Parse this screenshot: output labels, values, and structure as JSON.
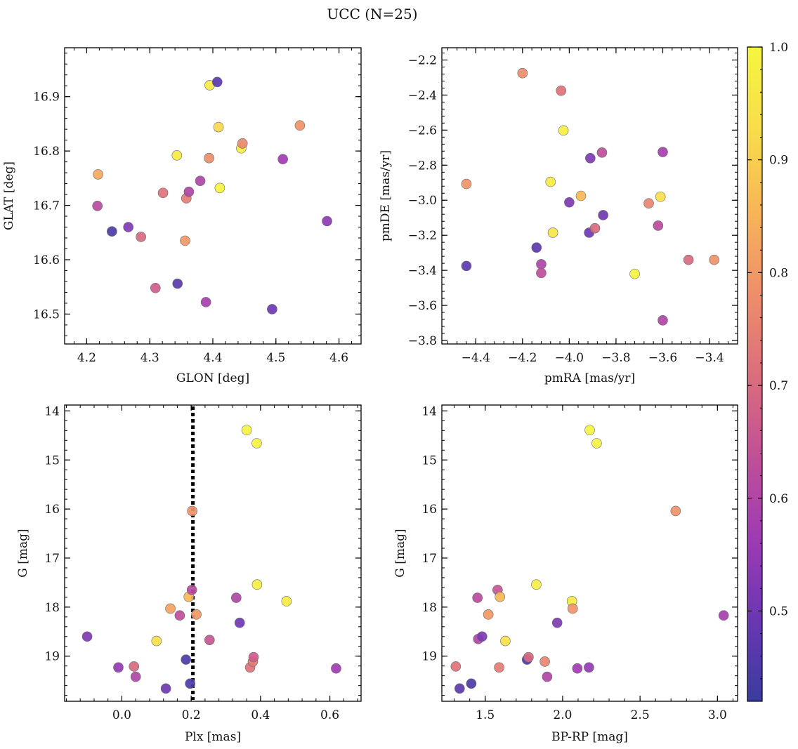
{
  "figure": {
    "title": "UCC (N=25)"
  },
  "colorbar": {
    "min": 0.42,
    "max": 1.0,
    "ticks": [
      0.5,
      0.6,
      0.7,
      0.8,
      0.9,
      1.0
    ],
    "tick_labels": [
      "0.5",
      "0.6",
      "0.7",
      "0.8",
      "0.9",
      "1.0"
    ],
    "colormap": "plasma",
    "stops": [
      "#3a3c9f",
      "#6a37b3",
      "#9f3bb4",
      "#c15097",
      "#db6e7c",
      "#ee8f6a",
      "#f8b558",
      "#f8dd4c",
      "#f5f63e"
    ]
  },
  "chart_data": [
    {
      "type": "scatter",
      "xlabel": "GLON [deg]",
      "ylabel": "GLAT [deg]",
      "xlim": [
        4.165,
        4.635
      ],
      "ylim": [
        16.445,
        16.99
      ],
      "xticks": [
        4.2,
        4.3,
        4.4,
        4.5,
        4.6
      ],
      "xtick_labels": [
        "4.2",
        "4.3",
        "4.4",
        "4.5",
        "4.6"
      ],
      "yticks": [
        16.5,
        16.6,
        16.7,
        16.8,
        16.9
      ],
      "ytick_labels": [
        "16.5",
        "16.6",
        "16.7",
        "16.8",
        "16.9"
      ],
      "x": [
        4.218,
        4.217,
        4.24,
        4.266,
        4.286,
        4.309,
        4.321,
        4.343,
        4.344,
        4.358,
        4.362,
        4.356,
        4.38,
        4.389,
        4.394,
        4.395,
        4.407,
        4.409,
        4.411,
        4.445,
        4.447,
        4.494,
        4.511,
        4.538,
        4.581
      ],
      "y": [
        16.757,
        16.699,
        16.652,
        16.66,
        16.642,
        16.548,
        16.723,
        16.792,
        16.556,
        16.713,
        16.725,
        16.635,
        16.745,
        16.522,
        16.787,
        16.921,
        16.927,
        16.844,
        16.732,
        16.805,
        16.814,
        16.509,
        16.785,
        16.847,
        16.671
      ],
      "c": [
        0.83,
        0.62,
        0.45,
        0.52,
        0.7,
        0.67,
        0.72,
        0.97,
        0.47,
        0.74,
        0.6,
        0.8,
        0.6,
        0.58,
        0.78,
        0.97,
        0.47,
        0.92,
        0.99,
        0.97,
        0.77,
        0.5,
        0.57,
        0.79,
        0.54
      ]
    },
    {
      "type": "scatter",
      "xlabel": "pmRA [mas/yr]",
      "ylabel": "pmDE [mas/yr]",
      "xlim": [
        -4.545,
        -3.28
      ],
      "ylim": [
        -3.82,
        -2.13
      ],
      "xticks": [
        -4.4,
        -4.2,
        -4.0,
        -3.8,
        -3.6,
        -3.4
      ],
      "xtick_labels": [
        "−4.4",
        "−4.2",
        "−4.0",
        "−3.8",
        "−3.6",
        "−3.4"
      ],
      "yticks": [
        -3.8,
        -3.6,
        -3.4,
        -3.2,
        -3.0,
        -2.8,
        -2.6,
        -2.4,
        -2.2
      ],
      "ytick_labels": [
        "−3.8",
        "−3.6",
        "−3.4",
        "−3.2",
        "−3.0",
        "−2.8",
        "−2.6",
        "−2.4",
        "−2.2"
      ],
      "x": [
        -4.44,
        -4.44,
        -4.2,
        -4.14,
        -4.12,
        -4.12,
        -4.08,
        -4.07,
        -4.035,
        -4.025,
        -4.0,
        -3.95,
        -3.915,
        -3.91,
        -3.89,
        -3.86,
        -3.855,
        -3.72,
        -3.66,
        -3.62,
        -3.61,
        -3.6,
        -3.6,
        -3.49,
        -3.38
      ],
      "y": [
        -3.375,
        -2.907,
        -2.275,
        -3.27,
        -3.365,
        -3.415,
        -2.895,
        -3.185,
        -2.375,
        -2.602,
        -3.012,
        -2.975,
        -3.185,
        -2.76,
        -3.16,
        -2.728,
        -3.085,
        -3.42,
        -3.018,
        -3.145,
        -2.98,
        -2.725,
        -3.685,
        -3.34,
        -3.34
      ],
      "c": [
        0.47,
        0.79,
        0.78,
        0.47,
        0.6,
        0.63,
        0.97,
        0.95,
        0.72,
        0.98,
        0.52,
        0.86,
        0.5,
        0.52,
        0.7,
        0.63,
        0.5,
        0.99,
        0.76,
        0.62,
        0.93,
        0.58,
        0.6,
        0.7,
        0.79
      ]
    },
    {
      "type": "scatter",
      "xlabel": "Plx [mas]",
      "ylabel": "G [mag]",
      "xlim": [
        -0.165,
        0.69
      ],
      "ylim": [
        19.92,
        13.88
      ],
      "y_inverted": true,
      "vline": 0.205,
      "xticks": [
        0.0,
        0.2,
        0.4,
        0.6
      ],
      "xtick_labels": [
        "0.0",
        "0.2",
        "0.4",
        "0.6"
      ],
      "yticks": [
        14,
        15,
        16,
        17,
        18,
        19
      ],
      "ytick_labels": [
        "14",
        "15",
        "16",
        "17",
        "18",
        "19"
      ],
      "x": [
        -0.1,
        -0.01,
        0.035,
        0.04,
        0.1,
        0.127,
        0.14,
        0.167,
        0.185,
        0.193,
        0.197,
        0.202,
        0.203,
        0.215,
        0.253,
        0.33,
        0.34,
        0.36,
        0.37,
        0.378,
        0.38,
        0.389,
        0.39,
        0.475,
        0.618
      ],
      "y": [
        18.6,
        19.23,
        19.21,
        19.42,
        18.69,
        19.66,
        18.03,
        18.17,
        19.07,
        17.79,
        19.56,
        17.65,
        16.04,
        18.15,
        18.67,
        17.81,
        18.32,
        14.39,
        19.23,
        19.11,
        19.02,
        14.66,
        17.54,
        17.88,
        19.25
      ],
      "c": [
        0.52,
        0.55,
        0.7,
        0.6,
        0.94,
        0.5,
        0.82,
        0.63,
        0.45,
        0.86,
        0.45,
        0.62,
        0.79,
        0.8,
        0.65,
        0.6,
        0.5,
        0.99,
        0.72,
        0.74,
        0.67,
        0.99,
        0.98,
        0.97,
        0.57
      ]
    },
    {
      "type": "scatter",
      "xlabel": "BP-RP [mag]",
      "ylabel": "G [mag]",
      "xlim": [
        1.22,
        3.13
      ],
      "ylim": [
        19.92,
        13.88
      ],
      "y_inverted": true,
      "xticks": [
        1.5,
        2.0,
        2.5,
        3.0
      ],
      "xtick_labels": [
        "1.5",
        "2.0",
        "2.5",
        "3.0"
      ],
      "yticks": [
        14,
        15,
        16,
        17,
        18,
        19
      ],
      "ytick_labels": [
        "14",
        "15",
        "16",
        "17",
        "18",
        "19"
      ],
      "x": [
        1.31,
        1.335,
        1.41,
        1.45,
        1.455,
        1.48,
        1.52,
        1.58,
        1.59,
        1.595,
        1.63,
        1.77,
        1.78,
        1.83,
        1.885,
        1.9,
        1.965,
        2.06,
        2.065,
        2.095,
        2.17,
        2.175,
        2.22,
        2.73,
        3.04
      ],
      "y": [
        19.21,
        19.66,
        19.56,
        17.81,
        18.65,
        18.6,
        18.15,
        17.65,
        19.23,
        17.79,
        18.69,
        19.07,
        19.02,
        17.54,
        19.11,
        19.42,
        18.32,
        17.88,
        18.03,
        19.25,
        19.23,
        14.39,
        14.66,
        16.04,
        18.17
      ],
      "c": [
        0.72,
        0.47,
        0.45,
        0.62,
        0.6,
        0.52,
        0.8,
        0.65,
        0.74,
        0.86,
        0.94,
        0.45,
        0.7,
        0.98,
        0.76,
        0.6,
        0.52,
        0.97,
        0.79,
        0.57,
        0.55,
        0.99,
        0.99,
        0.79,
        0.58
      ]
    }
  ]
}
